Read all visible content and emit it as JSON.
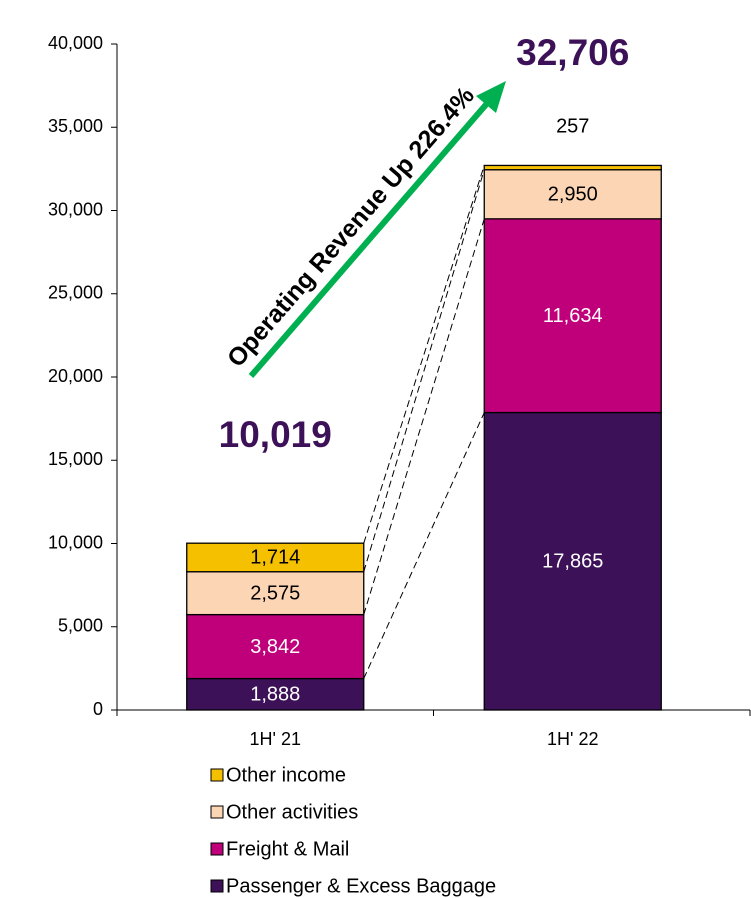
{
  "chart_data": {
    "type": "bar",
    "stacked": true,
    "categories": [
      "1H' 21",
      "1H' 22"
    ],
    "series": [
      {
        "name": "Passenger & Excess Baggage",
        "color": "#3d1158",
        "label_color": "#ffffff",
        "values": [
          1888,
          17865
        ],
        "value_labels": [
          "1,888",
          "17,865"
        ]
      },
      {
        "name": "Freight & Mail",
        "color": "#c0007a",
        "label_color": "#ffffff",
        "values": [
          3842,
          11634
        ],
        "value_labels": [
          "3,842",
          "11,634"
        ]
      },
      {
        "name": "Other activities",
        "color": "#fcd5b5",
        "label_color": "#000000",
        "values": [
          2575,
          2950
        ],
        "value_labels": [
          "2,575",
          "2,950"
        ]
      },
      {
        "name": "Other income",
        "color": "#f5c000",
        "label_color": "#000000",
        "values": [
          1714,
          257
        ],
        "value_labels": [
          "1,714",
          "257"
        ]
      }
    ],
    "totals": {
      "values": [
        10019,
        32706
      ],
      "value_labels": [
        "10,019",
        "32,706"
      ],
      "color": "#3d1158"
    },
    "annotation": {
      "text": "Operating Revenue Up 226.4%",
      "color": "#00b050"
    },
    "ylim": [
      0,
      40000
    ],
    "yticks": [
      0,
      {
        "value": 5000,
        "label": "5,000"
      },
      {
        "value": 10000,
        "label": "10,000"
      },
      {
        "value": 15000,
        "label": "15,000"
      },
      {
        "value": 20000,
        "label": "20,000"
      },
      {
        "value": 25000,
        "label": "25,000"
      },
      {
        "value": 30000,
        "label": "30,000"
      },
      {
        "value": 35000,
        "label": "35,000"
      },
      {
        "value": 40000,
        "label": "40,000"
      }
    ],
    "grid": false,
    "legend": "bottom",
    "legend_order": "reverse"
  }
}
